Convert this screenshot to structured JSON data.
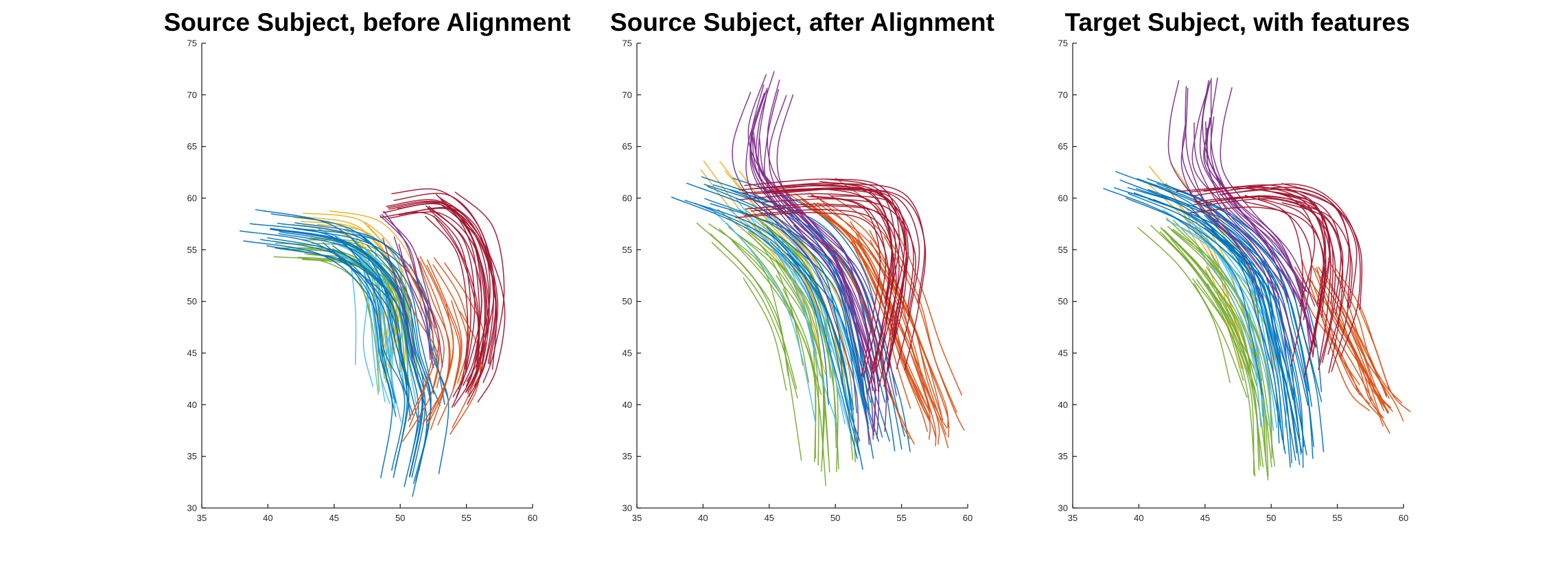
{
  "chart_data": [
    {
      "type": "line",
      "title": "Source Subject, before Alignment",
      "xlim": [
        35,
        60
      ],
      "ylim": [
        30,
        75
      ],
      "xticks": [
        35,
        40,
        45,
        50,
        55,
        60
      ],
      "yticks": [
        30,
        35,
        40,
        45,
        50,
        55,
        60,
        65,
        70,
        75
      ],
      "grid": false,
      "bundles": [
        {
          "color": "#EDB120",
          "count": 12,
          "spread": 0.9,
          "path": [
            [
              43,
              58
            ],
            [
              47,
              57
            ],
            [
              49.5,
              53
            ],
            [
              50,
              48
            ],
            [
              49.5,
              44
            ]
          ]
        },
        {
          "color": "#77AC30",
          "count": 18,
          "spread": 1.0,
          "path": [
            [
              42,
              55
            ],
            [
              46,
              54.5
            ],
            [
              48.5,
              52
            ],
            [
              49.5,
              47
            ],
            [
              50,
              42
            ]
          ]
        },
        {
          "color": "#4DBEEE",
          "count": 16,
          "spread": 1.0,
          "path": [
            [
              45,
              56
            ],
            [
              48,
              54
            ],
            [
              48.8,
              49
            ],
            [
              49,
              44
            ],
            [
              49.6,
              40
            ]
          ]
        },
        {
          "color": "#0072BD",
          "count": 24,
          "spread": 1.3,
          "path": [
            [
              40,
              57
            ],
            [
              46,
              55.5
            ],
            [
              49.5,
              51
            ],
            [
              50.5,
              45
            ],
            [
              51.5,
              40
            ],
            [
              50.5,
              33
            ]
          ]
        },
        {
          "color": "#D95319",
          "count": 16,
          "spread": 1.0,
          "path": [
            [
              51.5,
              54
            ],
            [
              53,
              50
            ],
            [
              54,
              46
            ],
            [
              53.5,
              42
            ],
            [
              52,
              38
            ]
          ]
        },
        {
          "color": "#7E2F8E",
          "count": 6,
          "spread": 0.8,
          "path": [
            [
              48,
              59
            ],
            [
              50,
              56
            ],
            [
              51,
              52
            ],
            [
              52,
              48
            ],
            [
              52.5,
              44
            ]
          ]
        },
        {
          "color": "#A2142F",
          "count": 22,
          "spread": 1.0,
          "path": [
            [
              49,
              59
            ],
            [
              53,
              59.5
            ],
            [
              55.5,
              56
            ],
            [
              56.5,
              50
            ],
            [
              56,
              44
            ],
            [
              55,
              41
            ]
          ]
        }
      ]
    },
    {
      "type": "line",
      "title": "Source Subject, after Alignment",
      "xlim": [
        35,
        60
      ],
      "ylim": [
        30,
        75
      ],
      "xticks": [
        35,
        40,
        45,
        50,
        55,
        60
      ],
      "yticks": [
        30,
        35,
        40,
        45,
        50,
        55,
        60,
        65,
        70,
        75
      ],
      "grid": false,
      "bundles": [
        {
          "color": "#EDB120",
          "count": 12,
          "spread": 1.0,
          "path": [
            [
              41,
              63
            ],
            [
              44,
              58
            ],
            [
              47,
              54
            ],
            [
              49,
              49
            ],
            [
              50,
              43
            ]
          ]
        },
        {
          "color": "#77AC30",
          "count": 22,
          "spread": 1.2,
          "path": [
            [
              42,
              57
            ],
            [
              45.5,
              53
            ],
            [
              47.5,
              48
            ],
            [
              48.5,
              42
            ],
            [
              48.8,
              34
            ]
          ]
        },
        {
          "color": "#4DBEEE",
          "count": 10,
          "spread": 1.0,
          "path": [
            [
              43,
              59
            ],
            [
              46,
              55
            ],
            [
              48.5,
              50
            ],
            [
              50,
              44
            ],
            [
              51,
              38
            ]
          ]
        },
        {
          "color": "#0072BD",
          "count": 24,
          "spread": 1.3,
          "path": [
            [
              40,
              60
            ],
            [
              46,
              57
            ],
            [
              49.5,
              52
            ],
            [
              51,
              46
            ],
            [
              52,
              40
            ],
            [
              53,
              35
            ]
          ]
        },
        {
          "color": "#D95319",
          "count": 24,
          "spread": 1.3,
          "path": [
            [
              48,
              60
            ],
            [
              52,
              56
            ],
            [
              54.5,
              50
            ],
            [
              56,
              44
            ],
            [
              57.5,
              39
            ],
            [
              58,
              37
            ]
          ]
        },
        {
          "color": "#7E2F8E",
          "count": 16,
          "spread": 1.0,
          "path": [
            [
              45,
              71
            ],
            [
              44,
              66
            ],
            [
              44.5,
              62
            ],
            [
              47,
              58
            ],
            [
              50,
              54
            ],
            [
              52,
              48
            ],
            [
              53,
              42
            ],
            [
              53,
              37
            ]
          ]
        },
        {
          "color": "#A2142F",
          "count": 22,
          "spread": 1.0,
          "path": [
            [
              44,
              60
            ],
            [
              50,
              60.5
            ],
            [
              54,
              59.5
            ],
            [
              55.5,
              55
            ],
            [
              55,
              49
            ],
            [
              54,
              43
            ]
          ]
        }
      ]
    },
    {
      "type": "line",
      "title": "Target Subject, with features",
      "xlim": [
        35,
        60
      ],
      "ylim": [
        30,
        75
      ],
      "xticks": [
        35,
        40,
        45,
        50,
        55,
        60
      ],
      "yticks": [
        30,
        35,
        40,
        45,
        50,
        55,
        60,
        65,
        70,
        75
      ],
      "grid": false,
      "bundles": [
        {
          "color": "#EDB120",
          "count": 10,
          "spread": 0.9,
          "path": [
            [
              42,
              62
            ],
            [
              44.5,
              58
            ],
            [
              46.5,
              54
            ],
            [
              48,
              49
            ],
            [
              49,
              44
            ]
          ]
        },
        {
          "color": "#77AC30",
          "count": 22,
          "spread": 1.1,
          "path": [
            [
              42,
              57
            ],
            [
              45,
              53
            ],
            [
              47.5,
              48
            ],
            [
              49,
              42
            ],
            [
              49.5,
              34
            ]
          ]
        },
        {
          "color": "#4DBEEE",
          "count": 12,
          "spread": 1.0,
          "path": [
            [
              43,
              58
            ],
            [
              46,
              55
            ],
            [
              48.5,
              50
            ],
            [
              50,
              44
            ],
            [
              50.5,
              38
            ]
          ]
        },
        {
          "color": "#0072BD",
          "count": 26,
          "spread": 1.3,
          "path": [
            [
              40,
              61
            ],
            [
              45.5,
              58
            ],
            [
              49.5,
              53
            ],
            [
              51,
              47
            ],
            [
              52,
              41
            ],
            [
              52.5,
              35
            ]
          ]
        },
        {
          "color": "#D95319",
          "count": 24,
          "spread": 1.1,
          "path": [
            [
              53.5,
              53
            ],
            [
              55,
              49
            ],
            [
              56.5,
              45
            ],
            [
              58,
              41
            ],
            [
              59,
              39
            ]
          ]
        },
        {
          "color": "#7E2F8E",
          "count": 16,
          "spread": 0.9,
          "path": [
            [
              45,
              71
            ],
            [
              44.5,
              67
            ],
            [
              44.5,
              63
            ],
            [
              46.5,
              59
            ],
            [
              49.5,
              55
            ],
            [
              51.5,
              50
            ],
            [
              52.5,
              45
            ]
          ]
        },
        {
          "color": "#A2142F",
          "count": 22,
          "spread": 1.0,
          "path": [
            [
              45,
              60
            ],
            [
              50,
              60.5
            ],
            [
              53.5,
              59
            ],
            [
              55,
              55
            ],
            [
              54.5,
              49
            ],
            [
              53.5,
              44
            ]
          ]
        }
      ]
    }
  ]
}
